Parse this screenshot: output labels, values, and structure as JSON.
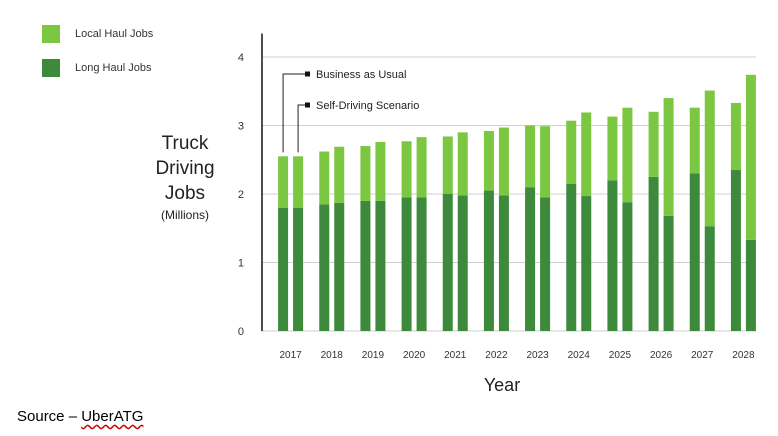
{
  "chart_data": {
    "type": "bar",
    "title": "",
    "xlabel": "Year",
    "ylabel_lines": [
      "Truck",
      "Driving",
      "Jobs"
    ],
    "ylabel_units": "(Millions)",
    "ylim": [
      0,
      4.3
    ],
    "yticks": [
      0,
      1,
      2,
      3,
      4
    ],
    "grid": true,
    "legend_placement": "top-left",
    "stacks": [
      {
        "name": "Long Haul Jobs",
        "color": "#3d8a3d"
      },
      {
        "name": "Local Haul Jobs",
        "color": "#7cc742"
      }
    ],
    "categories": [
      "2017",
      "2018",
      "2019",
      "2020",
      "2021",
      "2022",
      "2023",
      "2024",
      "2025",
      "2026",
      "2027",
      "2028"
    ],
    "series": [
      {
        "name": "Business as Usual",
        "long_haul": [
          1.8,
          1.85,
          1.9,
          1.95,
          2.0,
          2.05,
          2.1,
          2.15,
          2.2,
          2.25,
          2.3,
          2.35
        ],
        "local_haul": [
          0.75,
          0.77,
          0.8,
          0.82,
          0.84,
          0.87,
          0.9,
          0.92,
          0.93,
          0.95,
          0.96,
          0.98
        ]
      },
      {
        "name": "Self-Driving Scenario",
        "long_haul": [
          1.8,
          1.87,
          1.9,
          1.95,
          1.98,
          1.98,
          1.95,
          1.97,
          1.88,
          1.68,
          1.53,
          1.33
        ],
        "local_haul": [
          0.75,
          0.82,
          0.86,
          0.88,
          0.92,
          0.99,
          1.04,
          1.22,
          1.38,
          1.72,
          1.98,
          2.41
        ]
      }
    ],
    "annotations": [
      "Business as Usual",
      "Self-Driving Scenario"
    ]
  },
  "source": {
    "prefix": "Source – ",
    "brand": "UberATG"
  }
}
